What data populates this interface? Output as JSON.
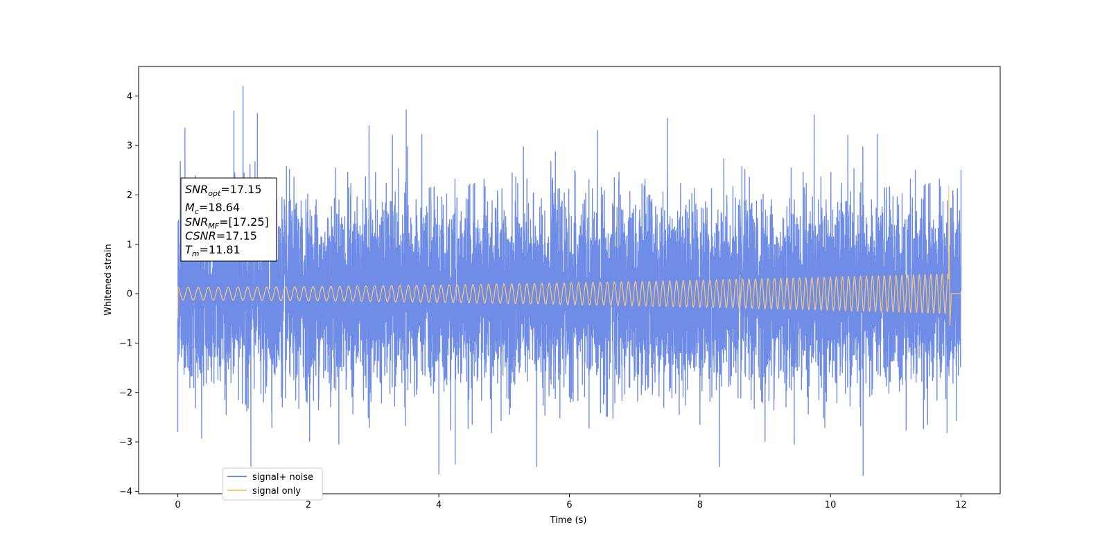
{
  "chart_data": {
    "type": "line",
    "xlabel": "Time (s)",
    "ylabel": "Whitened strain",
    "xlim": [
      -0.6,
      12.6
    ],
    "ylim": [
      -4.05,
      4.6
    ],
    "xticks": [
      0,
      2,
      4,
      6,
      8,
      10,
      12
    ],
    "yticks": [
      -4,
      -3,
      -2,
      -1,
      0,
      1,
      2,
      3,
      4
    ],
    "tick_labels_x": [
      "0",
      "2",
      "4",
      "6",
      "8",
      "10",
      "12"
    ],
    "tick_labels_y": [
      "−4",
      "−3",
      "−2",
      "−1",
      "0",
      "1",
      "2",
      "3",
      "4"
    ],
    "grid": false,
    "legend_position": "bottom-left",
    "series": [
      {
        "name": "signal+ noise",
        "color": "#6f8de6",
        "x_range": [
          0,
          12
        ],
        "noise_sigma": 0.9,
        "peaks": [
          {
            "x": 0.0,
            "y": -2.8
          },
          {
            "x": 0.11,
            "y": 3.35
          },
          {
            "x": 0.86,
            "y": 3.7
          },
          {
            "x": 1.0,
            "y": 4.2
          },
          {
            "x": 1.12,
            "y": -3.5
          },
          {
            "x": 1.22,
            "y": 3.65
          },
          {
            "x": 2.93,
            "y": 3.4
          },
          {
            "x": 3.5,
            "y": 3.72
          },
          {
            "x": 4.0,
            "y": -3.65
          },
          {
            "x": 4.25,
            "y": -3.45
          },
          {
            "x": 5.5,
            "y": -3.5
          },
          {
            "x": 7.5,
            "y": 3.55
          },
          {
            "x": 8.3,
            "y": -3.5
          },
          {
            "x": 9.75,
            "y": 3.62
          },
          {
            "x": 10.5,
            "y": -3.68
          },
          {
            "x": 11.3,
            "y": 2.5
          },
          {
            "x": 12.0,
            "y": 2.5
          }
        ]
      },
      {
        "name": "signal only",
        "color": "#ffc870",
        "x_range": [
          0,
          11.81
        ],
        "amplitude_start": 0.13,
        "amplitude_end": 0.4,
        "cycles_per_second_start": 6.3,
        "cycles_per_second_end": 11.5,
        "final_spike": {
          "x": 11.81,
          "y_max": 2.2,
          "y_min": -0.65
        },
        "after_merger_value": 0.0,
        "after_merger_end": 12.0
      }
    ],
    "annotation": [
      {
        "base": "SNR",
        "sub": "opt",
        "value": "=17.15"
      },
      {
        "base": "M",
        "sub": "c",
        "value": "=18.64"
      },
      {
        "base": "SNR",
        "sub": "MF",
        "value": "=[17.25]"
      },
      {
        "base": "CSNR",
        "sub": "",
        "value": "=17.15"
      },
      {
        "base": "T",
        "sub": "m",
        "value": "=11.81"
      }
    ]
  }
}
